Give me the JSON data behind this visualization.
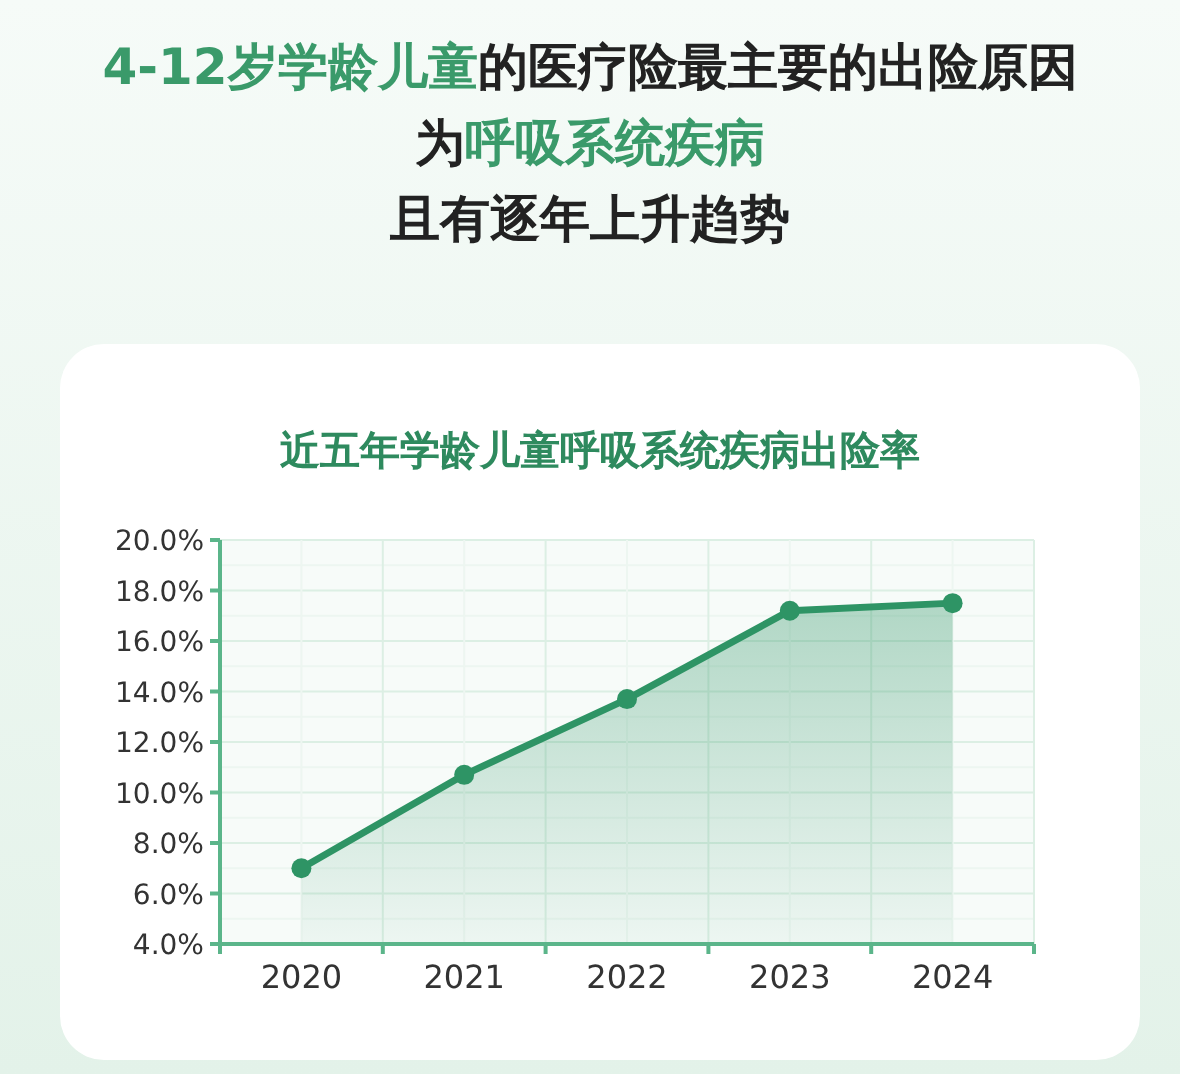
{
  "chart_data": {
    "type": "area",
    "title": "4-12岁学龄儿童的医疗险最主要的出险原因为呼吸系统疾病且有逐年上升趋势",
    "subtitle": "近五年学龄儿童呼吸系统疾病出险率",
    "categories": [
      "2020",
      "2021",
      "2022",
      "2023",
      "2024"
    ],
    "series": [
      {
        "color": "#2e9465",
        "values": [
          7.0,
          10.7,
          13.7,
          17.2,
          17.5
        ]
      }
    ],
    "ylim": [
      4,
      20
    ],
    "yticks": [
      {
        "value": 4,
        "label": "4.0%"
      },
      {
        "value": 6,
        "label": "6.0%"
      },
      {
        "value": 8,
        "label": "8.0%"
      },
      {
        "value": 10,
        "label": "10.0%"
      },
      {
        "value": 12,
        "label": "12.0%"
      },
      {
        "value": 14,
        "label": "14.0%"
      },
      {
        "value": 16,
        "label": "16.0%"
      },
      {
        "value": 18,
        "label": "18.0%"
      },
      {
        "value": 20,
        "label": "20.0%"
      }
    ],
    "grid": true,
    "marker": "circle",
    "line_style": "solid"
  }
}
